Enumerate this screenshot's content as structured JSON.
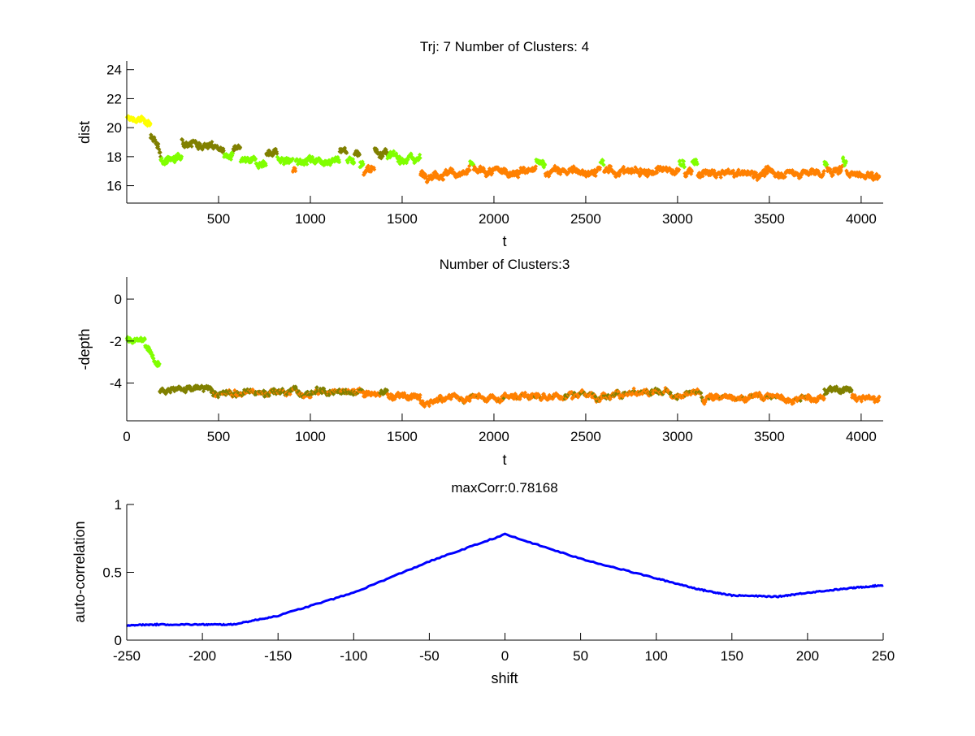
{
  "colors": {
    "yellow": "#ffff00",
    "green": "#80ff00",
    "olive": "#808000",
    "orange": "#ff8000",
    "line": "#0000ff"
  },
  "chart_data": [
    {
      "type": "scatter",
      "title": "Trj: 7 Number of Clusters: 4",
      "xlabel": "t",
      "ylabel": "dist",
      "xlim": [
        0,
        4120
      ],
      "ylim": [
        14.8,
        24.6
      ],
      "xticks": [
        "500",
        "1000",
        "1500",
        "2000",
        "2500",
        "3000",
        "3500",
        "4000"
      ],
      "xtick_values": [
        500,
        1000,
        1500,
        2000,
        2500,
        3000,
        3500,
        4000
      ],
      "yticks": [
        "16",
        "18",
        "20",
        "22",
        "24"
      ],
      "ytick_values": [
        16,
        18,
        20,
        22,
        24
      ],
      "noise": 0.28,
      "segments": [
        {
          "t": [
            1,
            130
          ],
          "y": [
            20.6,
            20.4
          ],
          "c": "yellow"
        },
        {
          "t": [
            130,
            185
          ],
          "y": [
            19.6,
            18.0
          ],
          "c": "olive"
        },
        {
          "t": [
            185,
            300
          ],
          "y": [
            17.8,
            17.9
          ],
          "c": "green"
        },
        {
          "t": [
            300,
            530
          ],
          "y": [
            19.2,
            18.5
          ],
          "c": "olive"
        },
        {
          "t": [
            530,
            580
          ],
          "y": [
            18.0,
            18.0
          ],
          "c": "green"
        },
        {
          "t": [
            580,
            620
          ],
          "y": [
            18.4,
            18.3
          ],
          "c": "olive"
        },
        {
          "t": [
            620,
            760
          ],
          "y": [
            17.6,
            17.6
          ],
          "c": "green"
        },
        {
          "t": [
            760,
            820
          ],
          "y": [
            18.3,
            18.3
          ],
          "c": "olive"
        },
        {
          "t": [
            820,
            905
          ],
          "y": [
            17.8,
            17.6
          ],
          "c": "green"
        },
        {
          "t": [
            905,
            920
          ],
          "y": [
            17.0,
            17.0
          ],
          "c": "orange"
        },
        {
          "t": [
            920,
            1160
          ],
          "y": [
            17.8,
            17.8
          ],
          "c": "green"
        },
        {
          "t": [
            1160,
            1200
          ],
          "y": [
            18.5,
            18.4
          ],
          "c": "olive"
        },
        {
          "t": [
            1200,
            1240
          ],
          "y": [
            17.8,
            17.8
          ],
          "c": "green"
        },
        {
          "t": [
            1240,
            1270
          ],
          "y": [
            18.3,
            18.3
          ],
          "c": "olive"
        },
        {
          "t": [
            1270,
            1290
          ],
          "y": [
            17.6,
            17.6
          ],
          "c": "green"
        },
        {
          "t": [
            1290,
            1350
          ],
          "y": [
            17.0,
            17.1
          ],
          "c": "orange"
        },
        {
          "t": [
            1350,
            1420
          ],
          "y": [
            18.4,
            18.3
          ],
          "c": "olive"
        },
        {
          "t": [
            1420,
            1600
          ],
          "y": [
            17.9,
            17.9
          ],
          "c": "green"
        },
        {
          "t": [
            1600,
            1870
          ],
          "y": [
            16.8,
            16.9
          ],
          "c": "orange"
        },
        {
          "t": [
            1870,
            1890
          ],
          "y": [
            17.4,
            17.4
          ],
          "c": "green"
        },
        {
          "t": [
            1890,
            2230
          ],
          "y": [
            16.9,
            17.0
          ],
          "c": "orange"
        },
        {
          "t": [
            2230,
            2280
          ],
          "y": [
            17.5,
            17.5
          ],
          "c": "green"
        },
        {
          "t": [
            2280,
            2580
          ],
          "y": [
            17.0,
            17.0
          ],
          "c": "orange"
        },
        {
          "t": [
            2580,
            2600
          ],
          "y": [
            17.5,
            17.5
          ],
          "c": "green"
        },
        {
          "t": [
            2600,
            3010
          ],
          "y": [
            17.0,
            17.0
          ],
          "c": "orange"
        },
        {
          "t": [
            3010,
            3040
          ],
          "y": [
            17.6,
            17.6
          ],
          "c": "green"
        },
        {
          "t": [
            3040,
            3080
          ],
          "y": [
            16.9,
            16.9
          ],
          "c": "orange"
        },
        {
          "t": [
            3080,
            3110
          ],
          "y": [
            17.5,
            17.5
          ],
          "c": "green"
        },
        {
          "t": [
            3110,
            3800
          ],
          "y": [
            16.8,
            16.9
          ],
          "c": "orange"
        },
        {
          "t": [
            3800,
            3815
          ],
          "y": [
            17.5,
            17.5
          ],
          "c": "green"
        },
        {
          "t": [
            3815,
            3900
          ],
          "y": [
            17.0,
            17.0
          ],
          "c": "orange"
        },
        {
          "t": [
            3900,
            3920
          ],
          "y": [
            17.6,
            17.6
          ],
          "c": "green"
        },
        {
          "t": [
            3920,
            4100
          ],
          "y": [
            17.0,
            16.6
          ],
          "c": "orange"
        }
      ]
    },
    {
      "type": "scatter",
      "title": "Number of Clusters:3",
      "xlabel": "t",
      "ylabel": "-depth",
      "xlim": [
        0,
        4120
      ],
      "ylim": [
        -5.8,
        1.05
      ],
      "xticks": [
        "0",
        "500",
        "1000",
        "1500",
        "2000",
        "2500",
        "3000",
        "3500",
        "4000"
      ],
      "xtick_values": [
        0,
        500,
        1000,
        1500,
        2000,
        2500,
        3000,
        3500,
        4000
      ],
      "yticks": [
        "-4",
        "-2",
        "0"
      ],
      "ytick_values": [
        -4,
        -2,
        0
      ],
      "noise": 0.16,
      "segments": [
        {
          "t": [
            1,
            100
          ],
          "y": [
            -1.9,
            -1.9
          ],
          "c": "green"
        },
        {
          "t": [
            100,
            180
          ],
          "y": [
            -2.3,
            -3.0
          ],
          "c": "green"
        },
        {
          "t": [
            180,
            470
          ],
          "y": [
            -4.25,
            -4.3
          ],
          "c": "olive"
        },
        {
          "t": [
            470,
            1290
          ],
          "y": [
            -4.45,
            -4.4
          ],
          "c": "olive",
          "alt": "orange",
          "p": 0.35
        },
        {
          "t": [
            1290,
            1380
          ],
          "y": [
            -4.6,
            -4.6
          ],
          "c": "orange"
        },
        {
          "t": [
            1380,
            1420
          ],
          "y": [
            -4.4,
            -4.4
          ],
          "c": "olive"
        },
        {
          "t": [
            1420,
            1600
          ],
          "y": [
            -4.6,
            -4.7
          ],
          "c": "orange"
        },
        {
          "t": [
            1600,
            1700
          ],
          "y": [
            -5.0,
            -4.9
          ],
          "c": "orange"
        },
        {
          "t": [
            1700,
            2380
          ],
          "y": [
            -4.75,
            -4.6
          ],
          "c": "orange",
          "alt": "olive",
          "p": 0.05
        },
        {
          "t": [
            2380,
            3130
          ],
          "y": [
            -4.55,
            -4.55
          ],
          "c": "orange",
          "alt": "olive",
          "p": 0.35
        },
        {
          "t": [
            3130,
            3800
          ],
          "y": [
            -4.7,
            -4.65
          ],
          "c": "orange",
          "alt": "olive",
          "p": 0.06
        },
        {
          "t": [
            3800,
            3950
          ],
          "y": [
            -4.35,
            -4.35
          ],
          "c": "olive"
        },
        {
          "t": [
            3950,
            4100
          ],
          "y": [
            -4.7,
            -4.8
          ],
          "c": "orange"
        }
      ]
    },
    {
      "type": "line",
      "title": "maxCorr:0.78168",
      "xlabel": "shift",
      "ylabel": "auto-correlation",
      "xlim": [
        -250,
        250
      ],
      "ylim": [
        0,
        1
      ],
      "xticks": [
        "-250",
        "-200",
        "-150",
        "-100",
        "-50",
        "0",
        "50",
        "100",
        "150",
        "200",
        "250"
      ],
      "xtick_values": [
        -250,
        -200,
        -150,
        -100,
        -50,
        0,
        50,
        100,
        150,
        200,
        250
      ],
      "yticks": [
        "0",
        "0.5",
        "1"
      ],
      "ytick_values": [
        0,
        0.5,
        1
      ],
      "x": [
        -250,
        -230,
        -200,
        -180,
        -150,
        -100,
        -50,
        0,
        50,
        100,
        130,
        150,
        180,
        200,
        230,
        250
      ],
      "y": [
        0.11,
        0.115,
        0.115,
        0.115,
        0.18,
        0.35,
        0.58,
        0.78,
        0.6,
        0.455,
        0.37,
        0.33,
        0.32,
        0.35,
        0.385,
        0.405
      ]
    }
  ]
}
